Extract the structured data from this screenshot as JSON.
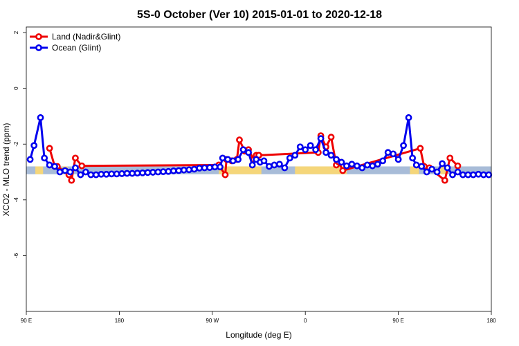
{
  "chart_data": {
    "type": "line",
    "title": "5S-0 October (Ver 10)   2015-01-01 to 2020-12-18",
    "xlabel": "Longitude (deg E)",
    "ylabel": "XCO2 - MLO trend (ppm)",
    "xlim": [
      90,
      450
    ],
    "ylim": [
      -8,
      2.2
    ],
    "x_ticks": [
      {
        "value": 90,
        "label": "90 E"
      },
      {
        "value": 162,
        "label": "180"
      },
      {
        "value": 234,
        "label": "90 W"
      },
      {
        "value": 306,
        "label": "0"
      },
      {
        "value": 378,
        "label": "90 E"
      },
      {
        "value": 450,
        "label": "180"
      }
    ],
    "y_ticks": [
      {
        "value": 2,
        "label": "2"
      },
      {
        "value": 0,
        "label": "0"
      },
      {
        "value": -2,
        "label": "-2"
      },
      {
        "value": -4,
        "label": "-4"
      },
      {
        "value": -6,
        "label": "-6"
      }
    ],
    "legend": {
      "position": "top-left",
      "entries": [
        "Land (Nadir&Glint)",
        "Ocean (Glint)"
      ]
    },
    "colors": {
      "land": "#ee0000",
      "ocean": "#0000ee",
      "band_ocean": "#a8bcd8",
      "band_land": "#f5d67a"
    },
    "band": {
      "y_top": -2.8,
      "y_bottom": -3.08
    },
    "land_band_ranges": [
      [
        97,
        103
      ],
      [
        118,
        122
      ],
      [
        239,
        272
      ],
      [
        298,
        338
      ],
      [
        387,
        394
      ],
      [
        410,
        416
      ]
    ],
    "series": [
      {
        "name": "Land (Nadir&Glint)",
        "color": "#ee0000",
        "points": [
          [
            108,
            -2.15
          ],
          [
            112,
            -2.8
          ],
          [
            114,
            -2.8
          ],
          [
            123,
            -3.1
          ],
          [
            125,
            -3.3
          ],
          [
            128,
            -2.5
          ],
          [
            133,
            -2.78
          ],
          [
            239,
            -2.75
          ],
          [
            244,
            -3.1
          ],
          [
            245,
            -2.55
          ],
          [
            249,
            -2.6
          ],
          [
            253,
            -2.55
          ],
          [
            255,
            -1.85
          ],
          [
            259,
            -2.25
          ],
          [
            262,
            -2.2
          ],
          [
            266,
            -2.55
          ],
          [
            268,
            -2.4
          ],
          [
            270,
            -2.4
          ],
          [
            316,
            -2.3
          ],
          [
            318,
            -1.7
          ],
          [
            322,
            -2.1
          ],
          [
            326,
            -1.75
          ],
          [
            330,
            -2.75
          ],
          [
            332,
            -2.65
          ],
          [
            335,
            -2.95
          ],
          [
            395,
            -2.15
          ],
          [
            398,
            -2.8
          ],
          [
            402,
            -2.85
          ],
          [
            414,
            -3.3
          ],
          [
            418,
            -2.5
          ],
          [
            424,
            -2.78
          ]
        ]
      },
      {
        "name": "Ocean (Glint)",
        "color": "#0000ee",
        "points": [
          [
            93,
            -2.55
          ],
          [
            96,
            -2.05
          ],
          [
            101,
            -1.05
          ],
          [
            104,
            -2.5
          ],
          [
            108,
            -2.75
          ],
          [
            112,
            -2.8
          ],
          [
            116,
            -3.0
          ],
          [
            120,
            -2.95
          ],
          [
            124,
            -3.0
          ],
          [
            128,
            -2.85
          ],
          [
            132,
            -3.1
          ],
          [
            136,
            -3.0
          ],
          [
            140,
            -3.1
          ],
          [
            144,
            -3.1
          ],
          [
            148,
            -3.08
          ],
          [
            152,
            -3.08
          ],
          [
            156,
            -3.07
          ],
          [
            160,
            -3.07
          ],
          [
            164,
            -3.06
          ],
          [
            168,
            -3.05
          ],
          [
            172,
            -3.05
          ],
          [
            176,
            -3.04
          ],
          [
            180,
            -3.03
          ],
          [
            184,
            -3.02
          ],
          [
            188,
            -3.01
          ],
          [
            192,
            -3.0
          ],
          [
            196,
            -2.99
          ],
          [
            200,
            -2.98
          ],
          [
            204,
            -2.96
          ],
          [
            208,
            -2.95
          ],
          [
            212,
            -2.93
          ],
          [
            216,
            -2.92
          ],
          [
            220,
            -2.9
          ],
          [
            224,
            -2.86
          ],
          [
            228,
            -2.85
          ],
          [
            232,
            -2.84
          ],
          [
            236,
            -2.82
          ],
          [
            240,
            -2.82
          ],
          [
            242,
            -2.5
          ],
          [
            246,
            -2.55
          ],
          [
            250,
            -2.6
          ],
          [
            254,
            -2.55
          ],
          [
            258,
            -2.2
          ],
          [
            262,
            -2.3
          ],
          [
            265,
            -2.75
          ],
          [
            268,
            -2.55
          ],
          [
            271,
            -2.65
          ],
          [
            274,
            -2.6
          ],
          [
            278,
            -2.8
          ],
          [
            282,
            -2.75
          ],
          [
            286,
            -2.72
          ],
          [
            290,
            -2.85
          ],
          [
            294,
            -2.5
          ],
          [
            298,
            -2.4
          ],
          [
            302,
            -2.1
          ],
          [
            306,
            -2.2
          ],
          [
            310,
            -2.05
          ],
          [
            314,
            -2.2
          ],
          [
            318,
            -1.8
          ],
          [
            322,
            -2.3
          ],
          [
            326,
            -2.4
          ],
          [
            330,
            -2.55
          ],
          [
            334,
            -2.65
          ],
          [
            338,
            -2.78
          ],
          [
            342,
            -2.72
          ],
          [
            346,
            -2.78
          ],
          [
            350,
            -2.85
          ],
          [
            354,
            -2.75
          ],
          [
            358,
            -2.78
          ],
          [
            362,
            -2.72
          ],
          [
            366,
            -2.6
          ],
          [
            370,
            -2.3
          ],
          [
            374,
            -2.35
          ],
          [
            378,
            -2.55
          ],
          [
            382,
            -2.05
          ],
          [
            386,
            -1.05
          ],
          [
            389,
            -2.5
          ],
          [
            392,
            -2.75
          ],
          [
            396,
            -2.8
          ],
          [
            400,
            -3.0
          ],
          [
            404,
            -2.9
          ],
          [
            408,
            -3.0
          ],
          [
            412,
            -2.7
          ],
          [
            416,
            -2.85
          ],
          [
            420,
            -3.1
          ],
          [
            424,
            -3.0
          ],
          [
            428,
            -3.1
          ],
          [
            432,
            -3.1
          ],
          [
            436,
            -3.1
          ],
          [
            440,
            -3.08
          ],
          [
            444,
            -3.1
          ],
          [
            448,
            -3.1
          ]
        ]
      }
    ]
  }
}
